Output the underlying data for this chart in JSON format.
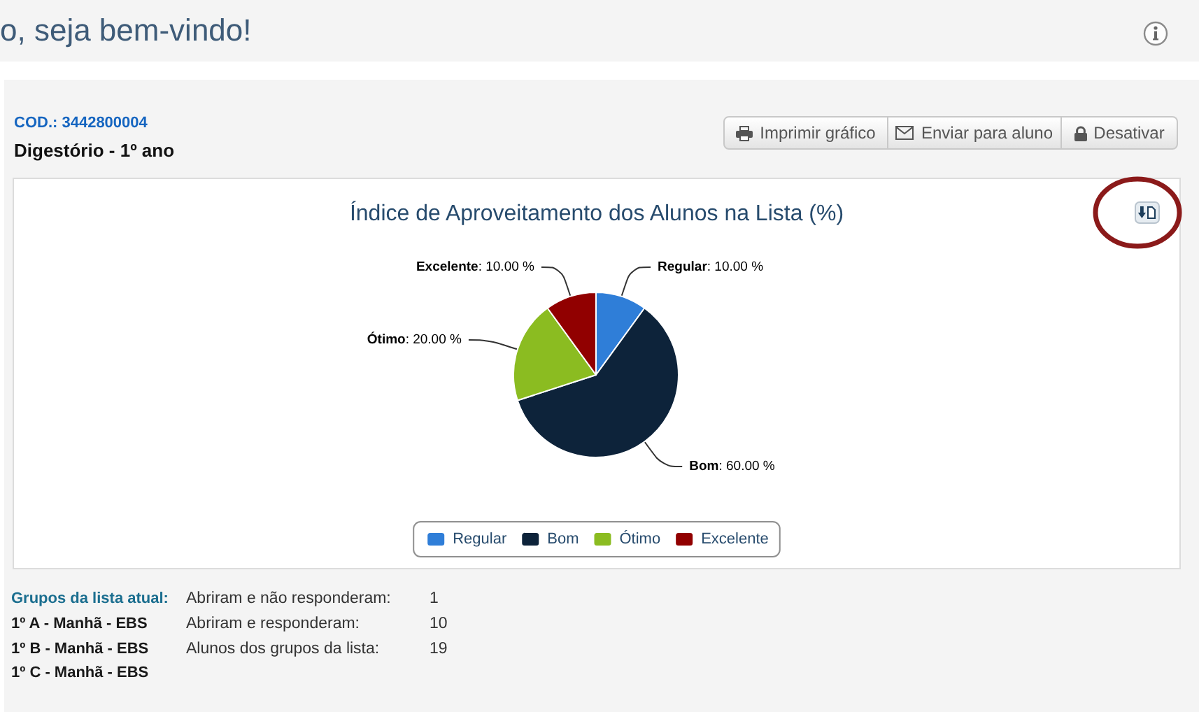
{
  "chart_data": {
    "type": "pie",
    "title": "Índice de Aproveitamento dos Alunos na Lista (%)",
    "categories": [
      "Regular",
      "Bom",
      "Ótimo",
      "Excelente"
    ],
    "values": [
      10,
      60,
      20,
      10
    ],
    "colors": [
      "#2f7ed8",
      "#0d233a",
      "#8bbc21",
      "#910000"
    ],
    "value_labels": [
      ": 10.00 %",
      ": 60.00 %",
      ": 20.00 %",
      ": 10.00 %"
    ],
    "legend": "bottom",
    "annotations": [
      "o, seja bem-vindo!",
      "COD.: 3442800004",
      "Digestório - 1º ano",
      "Imprimir gráfico",
      "Enviar para aluno",
      "Desativar",
      "Grupos da lista atual:",
      "1º A - Manhã - EBS",
      "1º B - Manhã - EBS",
      "1º C - Manhã - EBS",
      "Abriram e não responderam:",
      "1",
      "Abriram e responderam:",
      "10",
      "Alunos dos grupos da lista:",
      "19"
    ]
  }
}
